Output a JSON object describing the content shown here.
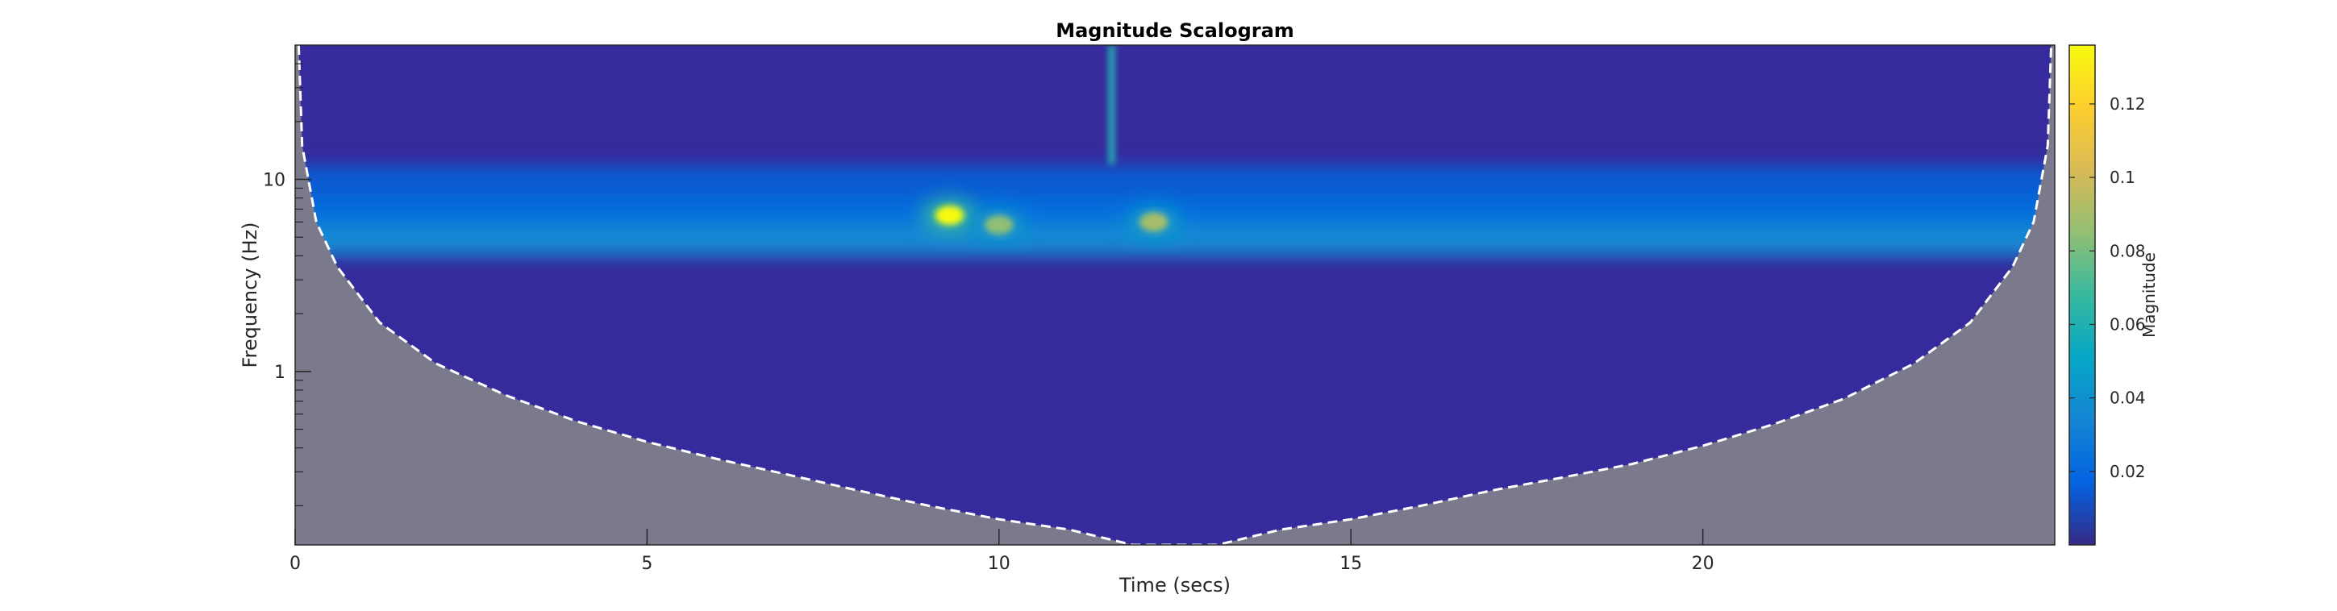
{
  "chart_data": {
    "type": "heatmap",
    "title": "Magnitude Scalogram",
    "xlabel": "Time (secs)",
    "ylabel": "Frequency (Hz)",
    "xlim": [
      0,
      25
    ],
    "ylim": [
      0.125,
      50
    ],
    "yscale": "log",
    "x_ticks": [
      0,
      5,
      10,
      15,
      20
    ],
    "y_ticks": [
      1,
      10
    ],
    "grid": false,
    "colormap": "parula",
    "colorbar": {
      "label": "Magnitude",
      "range": [
        0,
        0.136
      ],
      "ticks": [
        0.02,
        0.04,
        0.06,
        0.08,
        0.1,
        0.12
      ],
      "colors": [
        "#352a87",
        "#0363e1",
        "#1485d4",
        "#06a7c6",
        "#38b99e",
        "#92bf73",
        "#d9ba56",
        "#fcce2e",
        "#f9fb0e"
      ]
    },
    "cone_of_influence": {
      "style": "white dashed",
      "outside_color": "#7a7a8c",
      "points": [
        {
          "t": 0.05,
          "f": 50
        },
        {
          "t": 0.1,
          "f": 15
        },
        {
          "t": 0.3,
          "f": 6
        },
        {
          "t": 0.6,
          "f": 3.5
        },
        {
          "t": 1.2,
          "f": 1.8
        },
        {
          "t": 2.0,
          "f": 1.1
        },
        {
          "t": 3.0,
          "f": 0.75
        },
        {
          "t": 4.0,
          "f": 0.55
        },
        {
          "t": 5.0,
          "f": 0.43
        },
        {
          "t": 6.0,
          "f": 0.35
        },
        {
          "t": 7.0,
          "f": 0.29
        },
        {
          "t": 8.0,
          "f": 0.24
        },
        {
          "t": 9.0,
          "f": 0.2
        },
        {
          "t": 10.0,
          "f": 0.17
        },
        {
          "t": 11.0,
          "f": 0.15
        },
        {
          "t": 11.9,
          "f": 0.125
        },
        {
          "t": 13.1,
          "f": 0.125
        },
        {
          "t": 14.0,
          "f": 0.15
        },
        {
          "t": 15.0,
          "f": 0.17
        },
        {
          "t": 16.0,
          "f": 0.2
        },
        {
          "t": 17.0,
          "f": 0.24
        },
        {
          "t": 18.0,
          "f": 0.28
        },
        {
          "t": 19.0,
          "f": 0.33
        },
        {
          "t": 20.0,
          "f": 0.41
        },
        {
          "t": 21.0,
          "f": 0.53
        },
        {
          "t": 22.0,
          "f": 0.72
        },
        {
          "t": 23.0,
          "f": 1.1
        },
        {
          "t": 23.8,
          "f": 1.8
        },
        {
          "t": 24.4,
          "f": 3.5
        },
        {
          "t": 24.7,
          "f": 6
        },
        {
          "t": 24.9,
          "f": 15
        },
        {
          "t": 24.95,
          "f": 50
        }
      ]
    },
    "features": [
      {
        "name": "background",
        "magnitude": 0.005
      },
      {
        "name": "energy band 4-8 Hz",
        "f_low": 4,
        "f_high": 8,
        "magnitude": 0.035
      },
      {
        "name": "peak",
        "t": 9.3,
        "f": 6.5,
        "magnitude": 0.136
      },
      {
        "name": "secondary peak",
        "t": 10.0,
        "f": 5.8,
        "magnitude": 0.085
      },
      {
        "name": "secondary peak",
        "t": 12.2,
        "f": 6.0,
        "magnitude": 0.09
      },
      {
        "name": "spike",
        "t": 11.6,
        "f_low": 12,
        "f_high": 50,
        "magnitude": 0.06
      }
    ]
  }
}
